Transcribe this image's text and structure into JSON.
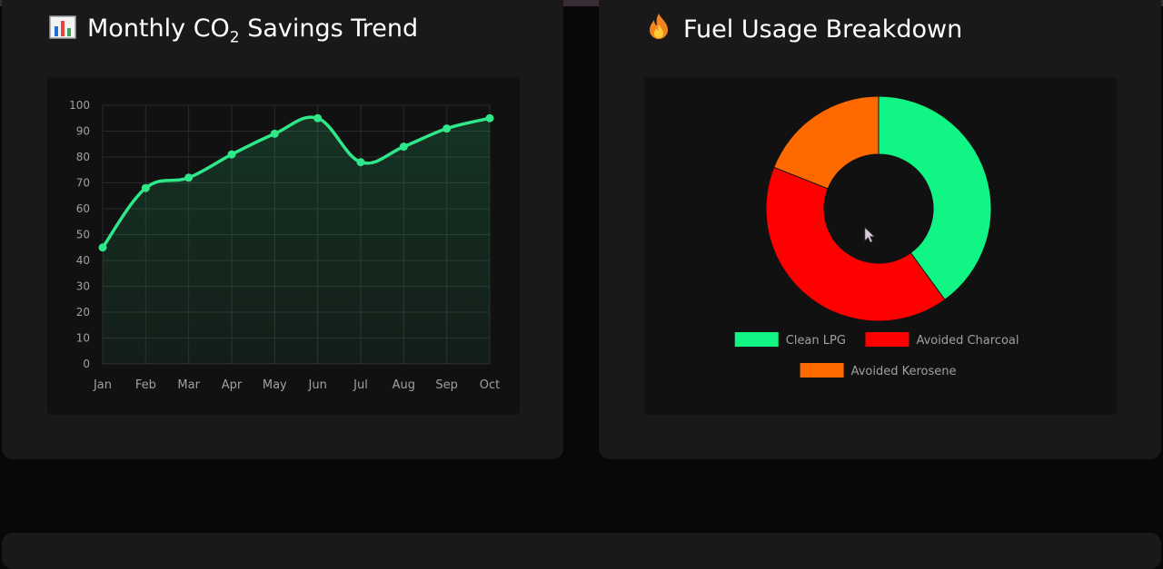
{
  "colors": {
    "line": "#2ee88a",
    "lpg": "#11f585",
    "charcoal": "#ff0000",
    "kerosene": "#ff6a00"
  },
  "line_card": {
    "icon": "bar-chart-icon",
    "title_prefix": "Monthly CO",
    "title_sub": "2",
    "title_suffix": " Savings Trend"
  },
  "pie_card": {
    "icon": "fire-icon",
    "title": "Fuel Usage Breakdown"
  },
  "chart_data": [
    {
      "type": "line",
      "categories": [
        "Jan",
        "Feb",
        "Mar",
        "Apr",
        "May",
        "Jun",
        "Jul",
        "Aug",
        "Sep",
        "Oct"
      ],
      "values": [
        45,
        68,
        72,
        81,
        89,
        95,
        78,
        84,
        91,
        95
      ],
      "ylim": [
        0,
        100
      ],
      "yticks": [
        0,
        10,
        20,
        30,
        40,
        50,
        60,
        70,
        80,
        90,
        100
      ],
      "grid": true,
      "fill": true,
      "title": "Monthly CO₂ Savings Trend"
    },
    {
      "type": "pie",
      "donut": true,
      "labels": [
        "Clean LPG",
        "Avoided Charcoal",
        "Avoided Kerosene"
      ],
      "values": [
        40,
        41,
        19
      ],
      "legend": "bottom",
      "title": "Fuel Usage Breakdown"
    }
  ]
}
